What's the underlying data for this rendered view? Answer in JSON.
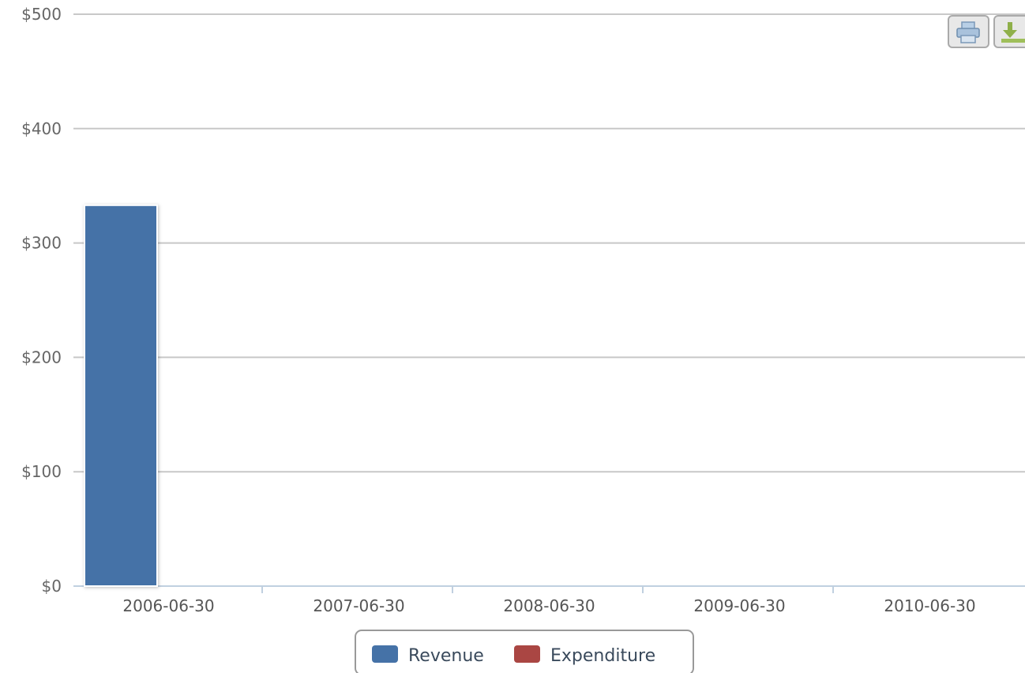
{
  "chart_data": {
    "type": "bar",
    "categories": [
      "2006-06-30",
      "2007-06-30",
      "2008-06-30",
      "2009-06-30",
      "2010-06-30"
    ],
    "series": [
      {
        "name": "Revenue",
        "values": [
          333,
          0,
          0,
          0,
          0
        ],
        "color": "#4572a7"
      },
      {
        "name": "Expenditure",
        "values": [
          0,
          0,
          0,
          0,
          0
        ],
        "color": "#aa4643"
      }
    ],
    "y_ticks": [
      "$0",
      "$100",
      "$200",
      "$300",
      "$400",
      "$500"
    ],
    "y_tick_values": [
      0,
      100,
      200,
      300,
      400,
      500
    ],
    "ylim": [
      0,
      500
    ],
    "grid": true,
    "legend_position": "bottom-center"
  },
  "toolbar": {
    "print_icon": "printer-icon",
    "export_icon": "download-icon"
  }
}
